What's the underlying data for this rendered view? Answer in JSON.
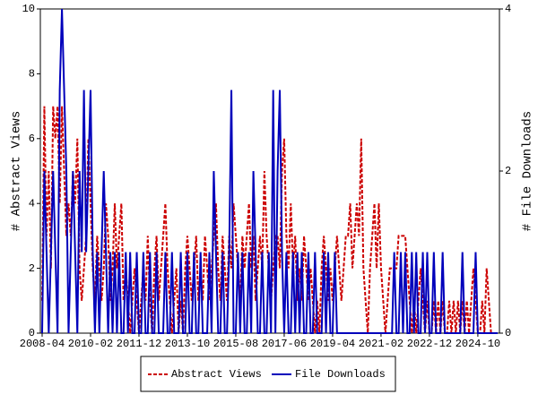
{
  "chart_data": {
    "type": "line",
    "y_label": "# Abstract Views",
    "y2_label": "# File Downloads",
    "x": [
      "2008-04",
      "2008-05",
      "2008-06",
      "2008-07",
      "2008-08",
      "2008-09",
      "2008-10",
      "2008-11",
      "2008-12",
      "2009-01",
      "2009-02",
      "2009-03",
      "2009-04",
      "2009-05",
      "2009-06",
      "2009-07",
      "2009-08",
      "2009-09",
      "2009-10",
      "2009-11",
      "2009-12",
      "2010-01",
      "2010-02",
      "2010-03",
      "2010-04",
      "2010-05",
      "2010-06",
      "2010-07",
      "2010-08",
      "2010-09",
      "2010-10",
      "2010-11",
      "2010-12",
      "2011-01",
      "2011-02",
      "2011-03",
      "2011-04",
      "2011-05",
      "2011-06",
      "2011-07",
      "2011-08",
      "2011-09",
      "2011-10",
      "2011-11",
      "2011-12",
      "2012-01",
      "2012-02",
      "2012-03",
      "2012-04",
      "2012-05",
      "2012-06",
      "2012-07",
      "2012-08",
      "2012-09",
      "2012-10",
      "2012-11",
      "2012-12",
      "2013-01",
      "2013-02",
      "2013-03",
      "2013-04",
      "2013-05",
      "2013-06",
      "2013-07",
      "2013-08",
      "2013-09",
      "2013-10",
      "2013-11",
      "2013-12",
      "2014-01",
      "2014-02",
      "2014-03",
      "2014-04",
      "2014-05",
      "2014-06",
      "2014-07",
      "2014-08",
      "2014-09",
      "2014-10",
      "2014-11",
      "2014-12",
      "2015-01",
      "2015-02",
      "2015-03",
      "2015-04",
      "2015-05",
      "2015-06",
      "2015-07",
      "2015-08",
      "2015-09",
      "2015-10",
      "2015-11",
      "2015-12",
      "2016-01",
      "2016-02",
      "2016-03",
      "2016-04",
      "2016-05",
      "2016-06",
      "2016-07",
      "2016-08",
      "2016-09",
      "2016-10",
      "2016-11",
      "2016-12",
      "2017-01",
      "2017-02",
      "2017-03",
      "2017-04",
      "2017-05",
      "2017-06",
      "2017-07",
      "2017-08",
      "2017-09",
      "2017-10",
      "2017-11",
      "2017-12",
      "2018-01",
      "2018-02",
      "2018-03",
      "2018-04",
      "2018-05",
      "2018-06",
      "2018-07",
      "2018-08",
      "2018-09",
      "2018-10",
      "2018-11",
      "2018-12",
      "2019-01",
      "2019-02",
      "2019-03",
      "2019-04",
      "2019-05",
      "2019-06",
      "2019-07",
      "2019-08",
      "2019-09",
      "2019-10",
      "2019-11",
      "2019-12",
      "2020-01",
      "2020-02",
      "2020-03",
      "2020-04",
      "2020-05",
      "2020-06",
      "2020-07",
      "2020-08",
      "2020-09",
      "2020-10",
      "2020-11",
      "2020-12",
      "2021-01",
      "2021-02",
      "2021-03",
      "2021-04",
      "2021-05",
      "2021-06",
      "2021-07",
      "2021-08",
      "2021-09",
      "2021-10",
      "2021-11",
      "2021-12",
      "2022-01",
      "2022-02",
      "2022-03",
      "2022-04",
      "2022-05",
      "2022-06",
      "2022-07",
      "2022-08",
      "2022-09",
      "2022-10",
      "2022-11",
      "2022-12",
      "2023-01",
      "2023-02",
      "2023-03",
      "2023-04",
      "2023-05",
      "2023-06",
      "2023-07",
      "2023-08",
      "2023-09",
      "2023-10",
      "2023-11",
      "2023-12",
      "2024-01",
      "2024-02",
      "2024-03",
      "2024-04",
      "2024-05",
      "2024-06",
      "2024-07",
      "2024-08",
      "2024-09",
      "2024-10",
      "2024-11",
      "2024-12",
      "2025-01",
      "2025-02",
      "2025-03",
      "2025-04",
      "2025-05",
      "2025-06",
      "2025-07"
    ],
    "xticks": [
      "2008-04",
      "2010-02",
      "2011-12",
      "2013-10",
      "2015-08",
      "2017-06",
      "2019-04",
      "2021-02",
      "2022-12",
      "2024-10"
    ],
    "ylim": [
      0,
      10
    ],
    "yticks": [
      0,
      2,
      4,
      6,
      8,
      10
    ],
    "y2lim": [
      0,
      4
    ],
    "y2ticks": [
      0,
      2,
      4
    ],
    "series": [
      {
        "name": "Abstract Views",
        "color": "#cc0000",
        "dash": true,
        "values": [
          1,
          7,
          3,
          5,
          2,
          7,
          6,
          7,
          4,
          7,
          5,
          3,
          4,
          3,
          5,
          4,
          6,
          2,
          1,
          2,
          3,
          6,
          4,
          2,
          1,
          3,
          2,
          1,
          2,
          4,
          3,
          1,
          2,
          4,
          2,
          3,
          4,
          1,
          2,
          1,
          0,
          1,
          2,
          1,
          0,
          1,
          2,
          1,
          3,
          1,
          0,
          2,
          3,
          1,
          2,
          3,
          4,
          2,
          1,
          0,
          1,
          2,
          0,
          1,
          0,
          2,
          3,
          2,
          1,
          2,
          3,
          1,
          2,
          1,
          3,
          2,
          1,
          2,
          3,
          4,
          2,
          1,
          3,
          2,
          1,
          3,
          2,
          4,
          3,
          2,
          1,
          3,
          2,
          3,
          4,
          2,
          3,
          1,
          2,
          3,
          2,
          5,
          3,
          2,
          1,
          2,
          3,
          3,
          2,
          5,
          6,
          3,
          2,
          4,
          2,
          3,
          1,
          2,
          1,
          3,
          2,
          1,
          2,
          1,
          0,
          1,
          0,
          2,
          3,
          2,
          1,
          2,
          1,
          2,
          3,
          2,
          1,
          2,
          3,
          3,
          4,
          2,
          3,
          4,
          3,
          6,
          2,
          1,
          0,
          2,
          3,
          4,
          2,
          4,
          2,
          1,
          0,
          1,
          2,
          2,
          2,
          2,
          3,
          3,
          3,
          3,
          2,
          1,
          0,
          1,
          0,
          1,
          2,
          1,
          0,
          1,
          0,
          0,
          1,
          0,
          1,
          0,
          1,
          0,
          0,
          1,
          0,
          1,
          0,
          1,
          0,
          1,
          0,
          1,
          0,
          1,
          2,
          1,
          0,
          0,
          1,
          0,
          2,
          1,
          0,
          0,
          0,
          0
        ]
      },
      {
        "name": "File Downloads",
        "color": "#0000bb",
        "axis": "y2",
        "values": [
          0,
          2,
          1,
          0,
          1,
          2,
          1,
          0,
          3,
          4,
          3,
          2,
          0,
          1,
          2,
          1,
          0,
          2,
          1,
          3,
          1,
          2,
          3,
          1,
          0,
          1,
          0,
          1,
          2,
          1,
          0,
          1,
          0,
          1,
          0,
          1,
          0,
          0,
          1,
          0,
          1,
          0,
          0,
          1,
          0,
          0,
          1,
          0,
          0,
          1,
          0,
          0,
          1,
          0,
          0,
          0,
          1,
          0,
          0,
          1,
          0,
          0,
          0,
          1,
          0,
          0,
          1,
          0,
          0,
          1,
          0,
          0,
          1,
          0,
          0,
          0,
          1,
          0,
          2,
          1,
          0,
          0,
          1,
          0,
          0,
          1,
          3,
          0,
          0,
          1,
          0,
          1,
          0,
          0,
          1,
          0,
          2,
          1,
          0,
          0,
          1,
          0,
          0,
          1,
          0,
          3,
          0,
          2,
          3,
          1,
          0,
          1,
          0,
          0,
          1,
          0,
          1,
          0,
          1,
          0,
          0,
          1,
          0,
          0,
          1,
          0,
          0,
          0,
          1,
          0,
          1,
          0,
          0,
          1,
          0,
          0,
          0,
          0,
          0,
          0,
          0,
          0,
          0,
          0,
          0,
          0,
          0,
          0,
          0,
          0,
          0,
          0,
          0,
          0,
          0,
          0,
          0,
          0,
          0,
          0,
          1,
          0,
          0,
          1,
          0,
          1,
          0,
          0,
          1,
          0,
          1,
          0,
          0,
          1,
          0,
          1,
          0,
          0,
          1,
          0,
          0,
          0,
          1,
          0,
          0,
          0,
          0,
          0,
          0,
          0,
          0,
          1,
          0,
          0,
          0,
          0,
          0,
          1,
          0,
          0,
          0,
          0,
          0,
          0,
          0,
          0,
          0,
          0
        ]
      }
    ]
  }
}
